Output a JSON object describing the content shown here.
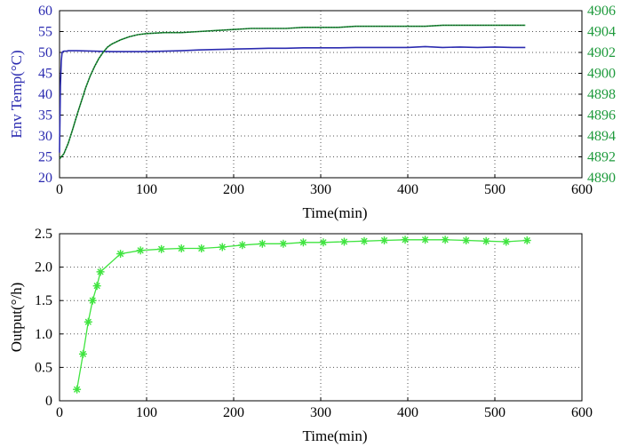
{
  "colors": {
    "temp": "#2b2bb0",
    "top_right": "#1e9a3c",
    "top_right_dots": "#111111",
    "output": "#3fe43f",
    "axis": "#000000",
    "right_axis_text": "#1e9a3c",
    "left_axis_text": "#2b2bb0"
  },
  "chart_data": [
    {
      "type": "line",
      "xlabel": "Time(min)",
      "ylabel": "Env Temp(°C)",
      "xlim": [
        0,
        600
      ],
      "ylim": [
        20,
        60
      ],
      "ylim_right": [
        4890,
        4906
      ],
      "grid": true,
      "xticks": [
        "0",
        "100",
        "200",
        "300",
        "400",
        "500",
        "600"
      ],
      "yticks": [
        "20",
        "25",
        "30",
        "35",
        "40",
        "45",
        "50",
        "55",
        "60"
      ],
      "yticks_right": [
        "4890",
        "4892",
        "4894",
        "4896",
        "4898",
        "4900",
        "4902",
        "4904",
        "4906"
      ],
      "series": [
        {
          "axis": "left",
          "color": "blue",
          "x": [
            0,
            1,
            2,
            3,
            4,
            5,
            6,
            8,
            10,
            20,
            40,
            60,
            80,
            100,
            120,
            140,
            160,
            180,
            200,
            220,
            240,
            260,
            280,
            300,
            320,
            340,
            360,
            380,
            400,
            420,
            440,
            460,
            480,
            500,
            520,
            535
          ],
          "y": [
            26,
            42,
            48,
            50,
            50.2,
            50.3,
            50.3,
            50.3,
            50.4,
            50.4,
            50.3,
            50.2,
            50.2,
            50.2,
            50.3,
            50.4,
            50.6,
            50.7,
            50.8,
            50.9,
            51.0,
            51.0,
            51.1,
            51.1,
            51.1,
            51.2,
            51.2,
            51.2,
            51.2,
            51.4,
            51.2,
            51.3,
            51.2,
            51.3,
            51.2,
            51.2
          ]
        },
        {
          "axis": "right",
          "color": "green",
          "x": [
            0,
            5,
            10,
            15,
            20,
            25,
            30,
            35,
            40,
            45,
            50,
            55,
            60,
            70,
            80,
            90,
            100,
            120,
            140,
            160,
            180,
            200,
            220,
            240,
            260,
            280,
            300,
            320,
            340,
            360,
            380,
            400,
            420,
            440,
            460,
            480,
            500,
            520,
            535
          ],
          "y": [
            4891.8,
            4892.3,
            4893.3,
            4894.6,
            4896.0,
            4897.3,
            4898.6,
            4899.7,
            4900.6,
            4901.4,
            4902.0,
            4902.5,
            4902.8,
            4903.2,
            4903.5,
            4903.7,
            4903.8,
            4903.9,
            4903.9,
            4904.0,
            4904.1,
            4904.2,
            4904.3,
            4904.3,
            4904.3,
            4904.4,
            4904.4,
            4904.4,
            4904.5,
            4904.5,
            4904.5,
            4904.5,
            4904.5,
            4904.6,
            4904.6,
            4904.6,
            4904.6,
            4904.6,
            4904.6
          ]
        }
      ]
    },
    {
      "type": "line",
      "xlabel": "Time(min)",
      "ylabel": "Output(°/h)",
      "xlim": [
        0,
        600
      ],
      "ylim": [
        0,
        2.5
      ],
      "grid": true,
      "xticks": [
        "0",
        "100",
        "200",
        "300",
        "400",
        "500",
        "600"
      ],
      "yticks": [
        "0",
        "0.5",
        "1.0",
        "1.5",
        "2.0",
        "2.5"
      ],
      "series": [
        {
          "marker": "*",
          "color": "green",
          "x": [
            20,
            27,
            33,
            38,
            43,
            47,
            70,
            93,
            117,
            140,
            163,
            187,
            210,
            233,
            257,
            280,
            303,
            327,
            350,
            373,
            397,
            420,
            443,
            467,
            490,
            513,
            537
          ],
          "y": [
            0.17,
            0.7,
            1.18,
            1.5,
            1.72,
            1.93,
            2.2,
            2.25,
            2.27,
            2.28,
            2.28,
            2.3,
            2.33,
            2.35,
            2.35,
            2.37,
            2.37,
            2.38,
            2.39,
            2.4,
            2.41,
            2.41,
            2.41,
            2.4,
            2.39,
            2.38,
            2.4
          ]
        }
      ]
    }
  ]
}
